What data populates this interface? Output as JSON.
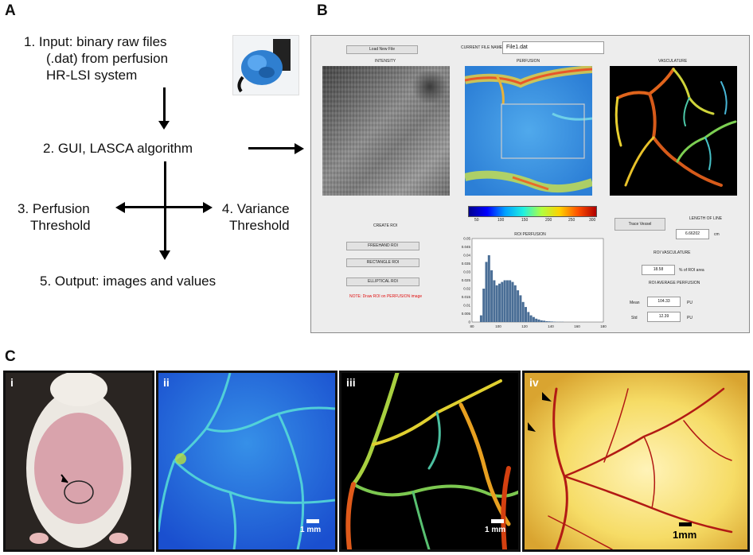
{
  "panels": {
    "a": "A",
    "b": "B",
    "c": "C"
  },
  "flowchart": {
    "step1": [
      "1.  Input:  binary raw files",
      "(.dat) from perfusion",
      "HR-LSI system"
    ],
    "step2": "2. GUI,  LASCA algorithm",
    "step3": [
      "3. Perfusion",
      "Threshold"
    ],
    "step4": [
      "4. Variance",
      "Threshold"
    ],
    "step5": "5. Output:  images and values"
  },
  "gui": {
    "load_button": "Load New File",
    "current_file_label": "CURRENT FILE NAME:",
    "current_file_value": "File1.dat",
    "intensity_title": "INTENSITY",
    "perfusion_title": "PERFUSION",
    "vasculature_title": "VASCULATURE",
    "colorbar_ticks": [
      "50",
      "100",
      "150",
      "200",
      "250",
      "300"
    ],
    "create_roi": "CREATE ROI",
    "freehand_button": "FREEHAND ROI",
    "rectangle_button": "RECTANGLE ROI",
    "elliptical_button": "ELLIPTICAL ROI",
    "note": "NOTE: Draw ROI on PERFUSION image",
    "trace_button": "Trace Vessel",
    "length_label": "LENGTH OF LINE",
    "length_value": "6.66202",
    "length_unit": "cm",
    "roi_vasculature": "ROI VASCULATURE",
    "vasc_value": "18.58",
    "vasc_unit": "% of ROI area",
    "roi_avg_perfusion": "ROI AVERAGE PERFUSION",
    "mean_label": "Mean",
    "mean_value": "104.33",
    "mean_unit": "PU",
    "std_label": "Std",
    "std_value": "12.39",
    "std_unit": "PU"
  },
  "chart_data": {
    "type": "bar",
    "title": "ROI PERFUSION",
    "xlabel": "",
    "ylabel": "",
    "xlim": [
      80,
      180
    ],
    "ylim": [
      0,
      0.05
    ],
    "xticks": [
      "80",
      "100",
      "120",
      "140",
      "160",
      "180"
    ],
    "yticks": [
      "0",
      "0.005",
      "0.01",
      "0.015",
      "0.02",
      "0.025",
      "0.03",
      "0.035",
      "0.04",
      "0.045",
      "0.05"
    ],
    "bin_centers": [
      87,
      89,
      91,
      93,
      95,
      97,
      99,
      101,
      103,
      105,
      107,
      109,
      111,
      113,
      115,
      117,
      119,
      121,
      123,
      125,
      127,
      129,
      131,
      133,
      135,
      137,
      139,
      141,
      143,
      145,
      147,
      149
    ],
    "values": [
      0.004,
      0.02,
      0.036,
      0.04,
      0.031,
      0.025,
      0.022,
      0.023,
      0.024,
      0.025,
      0.025,
      0.025,
      0.024,
      0.022,
      0.019,
      0.016,
      0.012,
      0.009,
      0.006,
      0.004,
      0.003,
      0.002,
      0.0015,
      0.001,
      0.0008,
      0.0005,
      0.0004,
      0.0003,
      0.0002,
      0.0001,
      0.0001,
      0.0001
    ],
    "bar_color": "#4a6e96"
  },
  "photos": {
    "i": {
      "label": "i"
    },
    "ii": {
      "label": "ii",
      "scale": "1 mm"
    },
    "iii": {
      "label": "iii",
      "scale": "1 mm"
    },
    "iv": {
      "label": "iv",
      "scale": "1mm"
    }
  }
}
